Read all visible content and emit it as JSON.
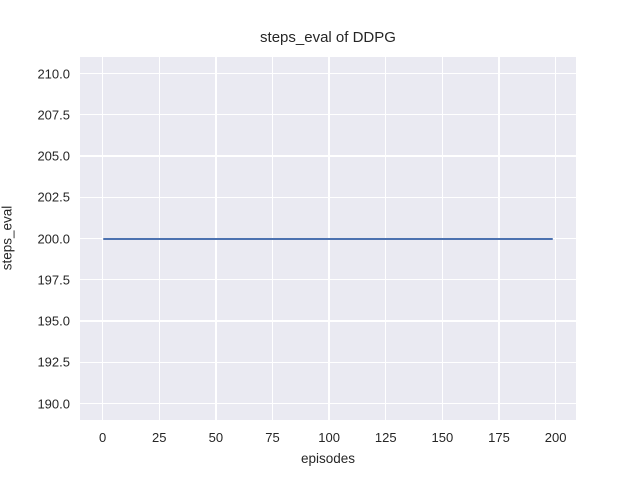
{
  "chart_data": {
    "type": "line",
    "title": "steps_eval of DDPG",
    "xlabel": "episodes",
    "ylabel": "steps_eval",
    "xlim": [
      -10,
      209
    ],
    "ylim": [
      189,
      211
    ],
    "x_ticks": [
      0,
      25,
      50,
      75,
      100,
      125,
      150,
      175,
      200
    ],
    "x_tick_labels": [
      "0",
      "25",
      "50",
      "75",
      "100",
      "125",
      "150",
      "175",
      "200"
    ],
    "y_ticks": [
      190.0,
      192.5,
      195.0,
      197.5,
      200.0,
      202.5,
      205.0,
      207.5,
      210.0
    ],
    "y_tick_labels": [
      "190.0",
      "192.5",
      "195.0",
      "197.5",
      "200.0",
      "202.5",
      "205.0",
      "207.5",
      "210.0"
    ],
    "grid": true,
    "legend_position": "none",
    "series": [
      {
        "name": "DDPG steps_eval",
        "x": [
          0,
          199
        ],
        "y": [
          200.0,
          200.0
        ],
        "color": "#4C72B0",
        "note": "constant value 200 for all evaluated episodes 0-199"
      }
    ],
    "styles": {
      "figure_bg": "#FFFFFF",
      "plot_bg": "#EAEAF2",
      "grid_color": "#FFFFFF",
      "text_color": "#262626"
    }
  }
}
